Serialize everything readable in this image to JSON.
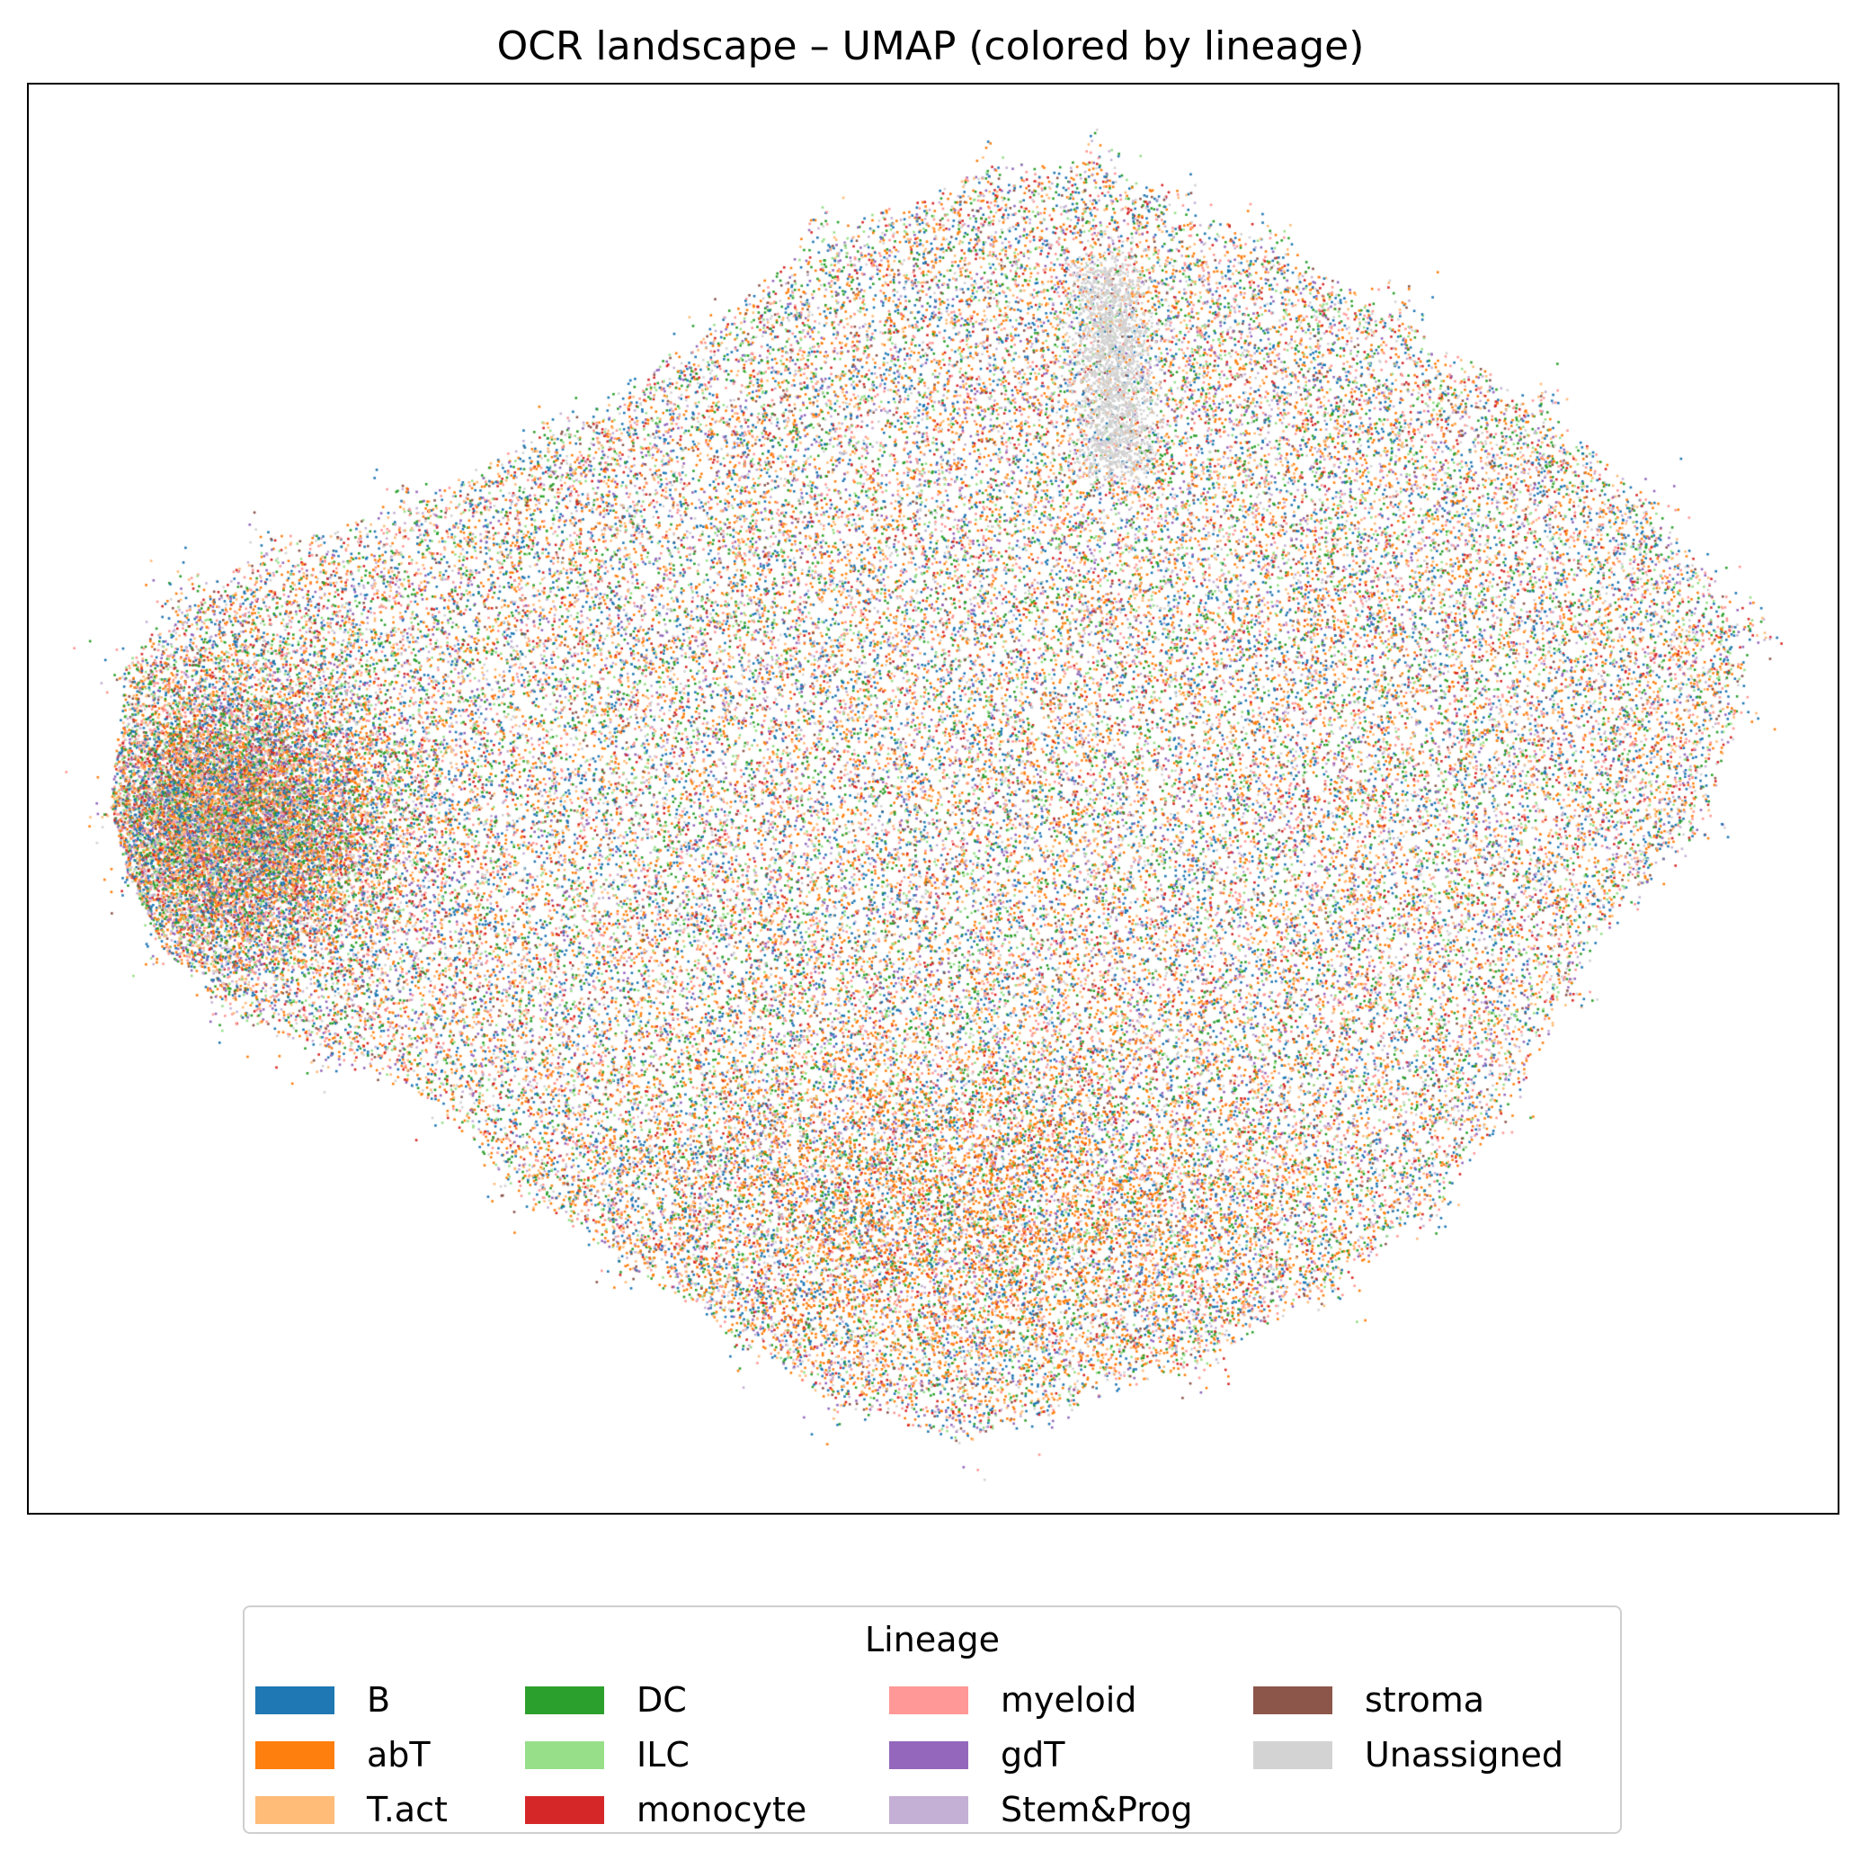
{
  "chart_data": {
    "type": "scatter",
    "title": "OCR landscape – UMAP (colored by lineage)",
    "xlabel": "",
    "ylabel": "",
    "axis_ticks": "none",
    "grid": false,
    "legend_title": "Lineage",
    "legend_position": "bottom",
    "series": [
      {
        "name": "B",
        "color": "#1f77b4"
      },
      {
        "name": "abT",
        "color": "#ff7f0e"
      },
      {
        "name": "T.act",
        "color": "#ffbb78"
      },
      {
        "name": "DC",
        "color": "#2ca02c"
      },
      {
        "name": "ILC",
        "color": "#98df8a"
      },
      {
        "name": "monocyte",
        "color": "#d62728"
      },
      {
        "name": "myeloid",
        "color": "#ff9896"
      },
      {
        "name": "gdT",
        "color": "#9467bd"
      },
      {
        "name": "Stem&Prog",
        "color": "#c5b0d5"
      },
      {
        "name": "stroma",
        "color": "#8c564b"
      },
      {
        "name": "Unassigned",
        "color": "#d3d3d3"
      }
    ]
  }
}
